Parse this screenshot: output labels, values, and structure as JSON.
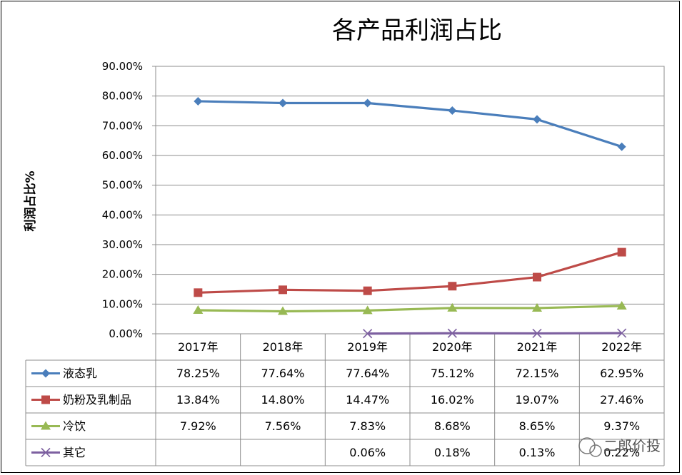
{
  "chart_data": {
    "type": "line",
    "title": "各产品利润占比",
    "ylabel": "利润占比%",
    "xlabel": "",
    "categories": [
      "2017年",
      "2018年",
      "2019年",
      "2020年",
      "2021年",
      "2022年"
    ],
    "ylim": [
      0,
      90
    ],
    "yticks": [
      0,
      10,
      20,
      30,
      40,
      50,
      60,
      70,
      80,
      90
    ],
    "ytick_labels": [
      "0.00%",
      "10.00%",
      "20.00%",
      "30.00%",
      "40.00%",
      "50.00%",
      "60.00%",
      "70.00%",
      "80.00%",
      "90.00%"
    ],
    "grid": true,
    "legend": "data-table-bottom",
    "series": [
      {
        "name": "液态乳",
        "color": "#4A7EBB",
        "marker": "diamond",
        "values": [
          78.25,
          77.64,
          77.64,
          75.12,
          72.15,
          62.95
        ],
        "labels": [
          "78.25%",
          "77.64%",
          "77.64%",
          "75.12%",
          "72.15%",
          "62.95%"
        ]
      },
      {
        "name": "奶粉及乳制品",
        "color": "#BE4B48",
        "marker": "square",
        "values": [
          13.84,
          14.8,
          14.47,
          16.02,
          19.07,
          27.46
        ],
        "labels": [
          "13.84%",
          "14.80%",
          "14.47%",
          "16.02%",
          "19.07%",
          "27.46%"
        ]
      },
      {
        "name": "冷饮",
        "color": "#98B954",
        "marker": "triangle",
        "values": [
          7.92,
          7.56,
          7.83,
          8.68,
          8.65,
          9.37
        ],
        "labels": [
          "7.92%",
          "7.56%",
          "7.83%",
          "8.68%",
          "8.65%",
          "9.37%"
        ]
      },
      {
        "name": "其它",
        "color": "#7D60A0",
        "marker": "x",
        "values": [
          null,
          null,
          0.06,
          0.18,
          0.13,
          0.22
        ],
        "labels": [
          "",
          "",
          "0.06%",
          "0.18%",
          "0.13%",
          "0.22%"
        ]
      }
    ]
  },
  "watermark": "二郎价投"
}
